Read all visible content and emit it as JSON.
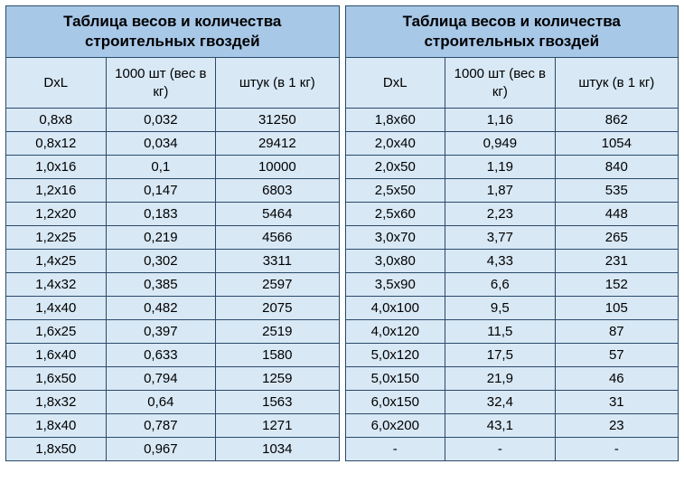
{
  "title": "Таблица весов и количества строительных гвоздей",
  "columns": [
    "DxL",
    "1000 шт (вес в кг)",
    "штук (в 1 кг)"
  ],
  "colors": {
    "title_bg": "#a8c8e8",
    "header_bg": "#d8e8f5",
    "cell_bg": "#d8e8f5",
    "border": "#2a4a6a",
    "text": "#000000"
  },
  "typography": {
    "title_fontsize": 17,
    "title_weight": "bold",
    "header_fontsize": 15,
    "cell_fontsize": 15,
    "font_family": "Arial"
  },
  "left_table": {
    "rows": [
      [
        "0,8x8",
        "0,032",
        "31250"
      ],
      [
        "0,8x12",
        "0,034",
        "29412"
      ],
      [
        "1,0x16",
        "0,1",
        "10000"
      ],
      [
        "1,2x16",
        "0,147",
        "6803"
      ],
      [
        "1,2x20",
        "0,183",
        "5464"
      ],
      [
        "1,2x25",
        "0,219",
        "4566"
      ],
      [
        "1,4x25",
        "0,302",
        "3311"
      ],
      [
        "1,4x32",
        "0,385",
        "2597"
      ],
      [
        "1,4x40",
        "0,482",
        "2075"
      ],
      [
        "1,6x25",
        "0,397",
        "2519"
      ],
      [
        "1,6x40",
        "0,633",
        "1580"
      ],
      [
        "1,6x50",
        "0,794",
        "1259"
      ],
      [
        "1,8x32",
        "0,64",
        "1563"
      ],
      [
        "1,8x40",
        "0,787",
        "1271"
      ],
      [
        "1,8x50",
        "0,967",
        "1034"
      ]
    ]
  },
  "right_table": {
    "rows": [
      [
        "1,8x60",
        "1,16",
        "862"
      ],
      [
        "2,0x40",
        "0,949",
        "1054"
      ],
      [
        "2,0x50",
        "1,19",
        "840"
      ],
      [
        "2,5x50",
        "1,87",
        "535"
      ],
      [
        "2,5x60",
        "2,23",
        "448"
      ],
      [
        "3,0x70",
        "3,77",
        "265"
      ],
      [
        "3,0x80",
        "4,33",
        "231"
      ],
      [
        "3,5x90",
        "6,6",
        "152"
      ],
      [
        "4,0x100",
        "9,5",
        "105"
      ],
      [
        "4,0x120",
        "11,5",
        "87"
      ],
      [
        "5,0x120",
        "17,5",
        "57"
      ],
      [
        "5,0x150",
        "21,9",
        "46"
      ],
      [
        "6,0x150",
        "32,4",
        "31"
      ],
      [
        "6,0x200",
        "43,1",
        "23"
      ],
      [
        "-",
        "-",
        "-"
      ]
    ]
  }
}
